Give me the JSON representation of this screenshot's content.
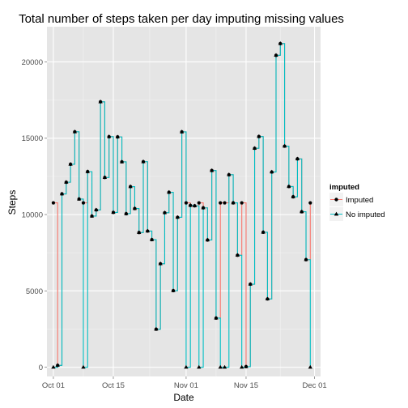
{
  "chart_data": {
    "type": "line",
    "title": "Total number of steps taken per day imputing missing values",
    "xlabel": "Date",
    "ylabel": "Steps",
    "x_tick_labels": [
      "Oct 01",
      "Oct 15",
      "Nov 01",
      "Nov 15",
      "Dec 01"
    ],
    "x_tick_days": [
      0,
      14,
      31,
      45,
      61
    ],
    "y_ticks": [
      0,
      5000,
      10000,
      15000,
      20000
    ],
    "xlim_days": [
      -1.5,
      62.4
    ],
    "ylim": [
      -600,
      22300
    ],
    "legend": {
      "title": "imputed",
      "position": "right"
    },
    "dates": [
      "Oct 01",
      "Oct 02",
      "Oct 03",
      "Oct 04",
      "Oct 05",
      "Oct 06",
      "Oct 07",
      "Oct 08",
      "Oct 09",
      "Oct 10",
      "Oct 11",
      "Oct 12",
      "Oct 13",
      "Oct 14",
      "Oct 15",
      "Oct 16",
      "Oct 17",
      "Oct 18",
      "Oct 19",
      "Oct 20",
      "Oct 21",
      "Oct 22",
      "Oct 23",
      "Oct 24",
      "Oct 25",
      "Oct 26",
      "Oct 27",
      "Oct 28",
      "Oct 29",
      "Oct 30",
      "Oct 31",
      "Nov 01",
      "Nov 02",
      "Nov 03",
      "Nov 04",
      "Nov 05",
      "Nov 06",
      "Nov 07",
      "Nov 08",
      "Nov 09",
      "Nov 10",
      "Nov 11",
      "Nov 12",
      "Nov 13",
      "Nov 14",
      "Nov 15",
      "Nov 16",
      "Nov 17",
      "Nov 18",
      "Nov 19",
      "Nov 20",
      "Nov 21",
      "Nov 22",
      "Nov 23",
      "Nov 24",
      "Nov 25",
      "Nov 26",
      "Nov 27",
      "Nov 28",
      "Nov 29",
      "Nov 30"
    ],
    "series": [
      {
        "name": "Imputed",
        "color": "#F8766D",
        "values": [
          10766,
          126,
          11352,
          12116,
          13294,
          15420,
          11015,
          10766,
          12811,
          9900,
          10304,
          17382,
          12426,
          15098,
          10139,
          15084,
          13452,
          10056,
          11829,
          10395,
          8821,
          13460,
          8918,
          8355,
          2492,
          6778,
          10119,
          11458,
          5018,
          9819,
          15414,
          10766,
          10600,
          10571,
          10766,
          10439,
          8334,
          12883,
          3219,
          10766,
          10766,
          12608,
          10765,
          7336,
          10766,
          41,
          5441,
          14339,
          15110,
          8841,
          4472,
          12787,
          20427,
          21194,
          14478,
          11834,
          11162,
          13646,
          10183,
          7047,
          10766
        ]
      },
      {
        "name": "No imputed",
        "color": "#00BFC4",
        "values": [
          0,
          126,
          11352,
          12116,
          13294,
          15420,
          11015,
          0,
          12811,
          9900,
          10304,
          17382,
          12426,
          15098,
          10139,
          15084,
          13452,
          10056,
          11829,
          10395,
          8821,
          13460,
          8918,
          8355,
          2492,
          6778,
          10119,
          11458,
          5018,
          9819,
          15414,
          0,
          10600,
          10571,
          0,
          10439,
          8334,
          12883,
          3219,
          0,
          0,
          12608,
          10765,
          7336,
          0,
          41,
          5441,
          14339,
          15110,
          8841,
          4472,
          12787,
          20427,
          21194,
          14478,
          11834,
          11162,
          13646,
          10183,
          7047,
          0
        ]
      }
    ]
  }
}
